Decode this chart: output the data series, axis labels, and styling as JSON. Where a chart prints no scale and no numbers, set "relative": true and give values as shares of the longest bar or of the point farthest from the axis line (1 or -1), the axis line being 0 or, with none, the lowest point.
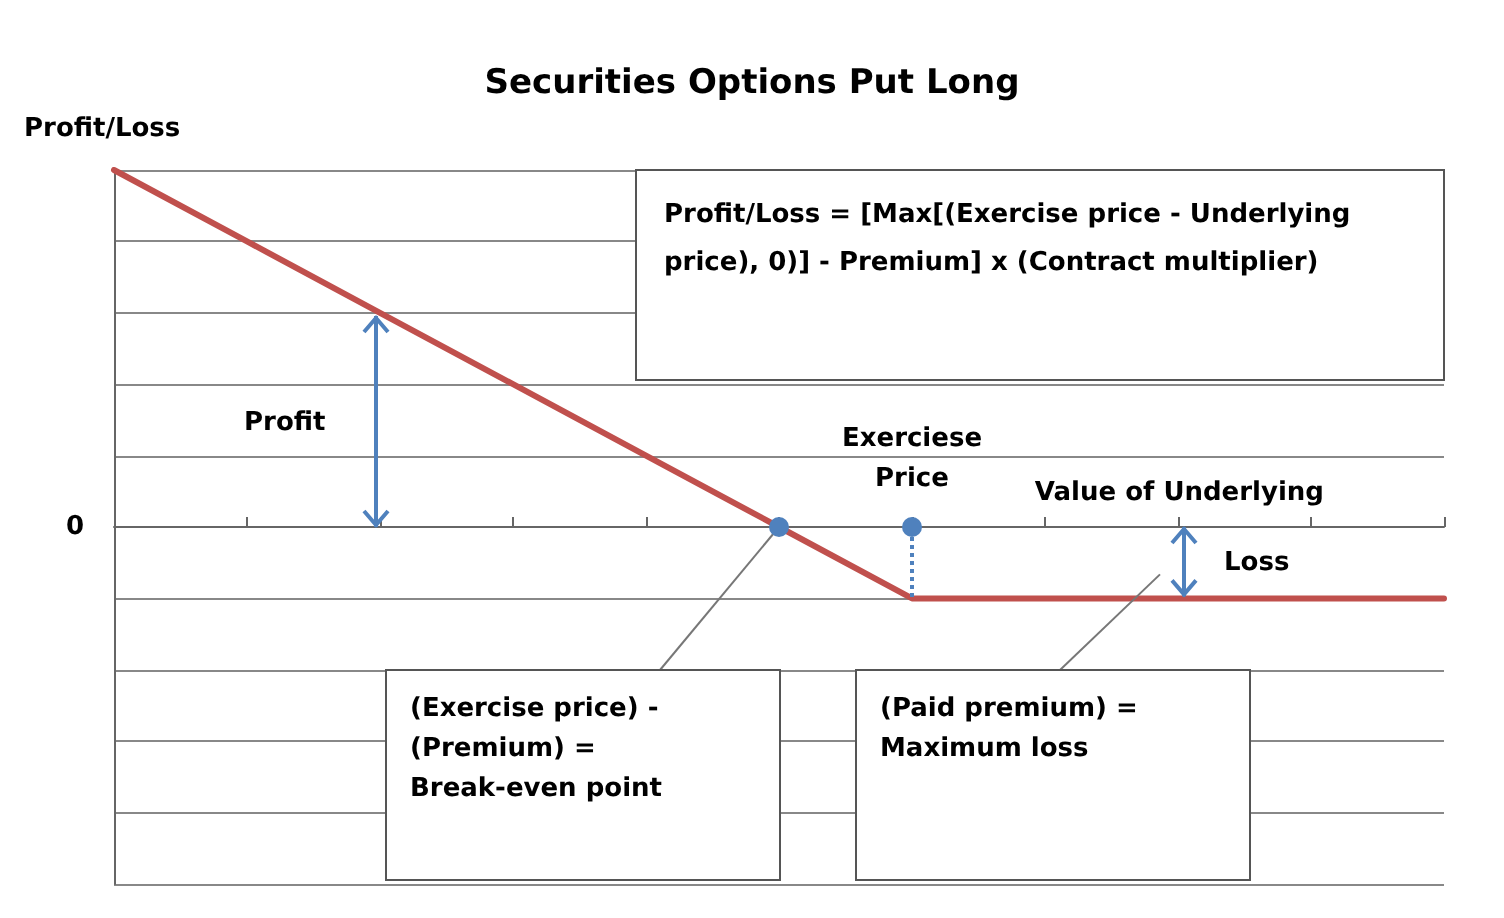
{
  "chart_data": {
    "type": "line",
    "title": "Securities Options Put Long",
    "ylabel": "Profit/Loss",
    "xlabel": "Value of Underlying",
    "relative": true,
    "grid": "y",
    "marker": "none",
    "line_style": "solid",
    "categories": [
      null,
      null,
      null,
      null,
      null,
      null,
      null,
      null,
      null,
      null,
      null
    ],
    "series": [
      {
        "color": "#c0504d",
        "values": [
          1,
          0.8,
          0.6,
          0.4,
          0.2,
          0,
          -0.2,
          -0.2,
          -0.2,
          -0.2,
          -0.2
        ]
      }
    ],
    "annotations": [
      "0",
      "Profit/Loss = [Max[(Exercise price - Underlying price), 0)] - Premium] x (Contract multiplier)",
      "Profit",
      {
        "text": "Exerciese\nPrice",
        "y": 0
      },
      "Loss",
      "(Exercise price) -\n(Premium) =\nBreak-even point",
      "(Paid premium) =\nMaximum loss"
    ]
  }
}
